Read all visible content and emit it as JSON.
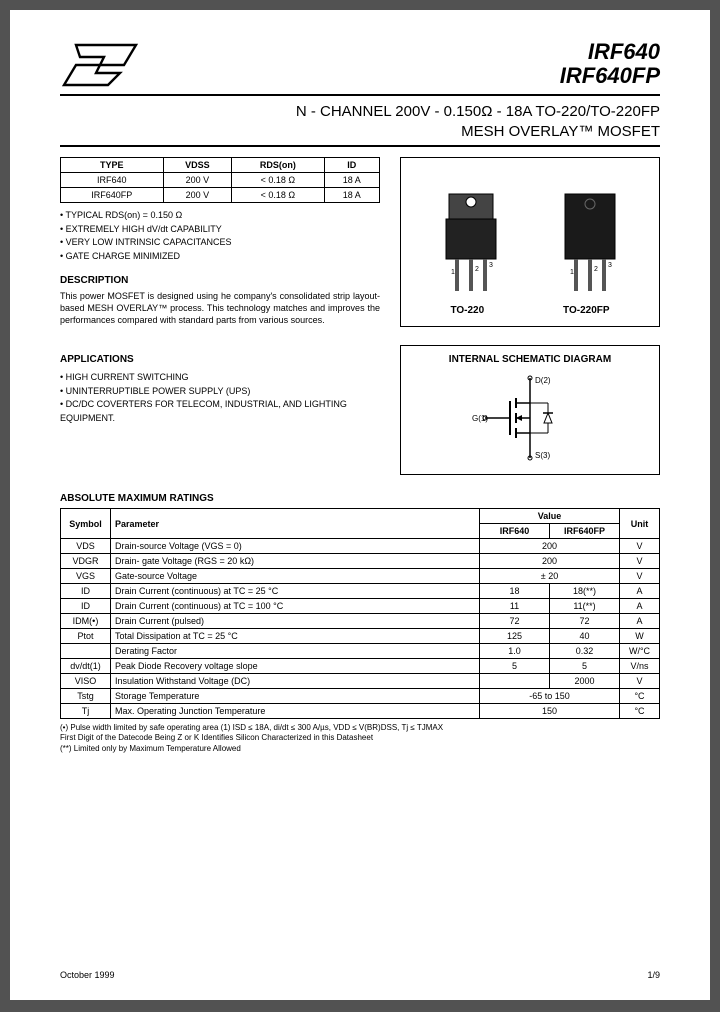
{
  "header": {
    "part1": "IRF640",
    "part2": "IRF640FP",
    "title1": "N - CHANNEL 200V - 0.150Ω - 18A   TO-220/TO-220FP",
    "title2": "MESH OVERLAY™  MOSFET"
  },
  "spec_table": {
    "headers": [
      "TYPE",
      "VDSS",
      "RDS(on)",
      "ID"
    ],
    "rows": [
      [
        "IRF640",
        "200 V",
        "< 0.18 Ω",
        "18 A"
      ],
      [
        "IRF640FP",
        "200 V",
        "< 0.18 Ω",
        "18 A"
      ]
    ]
  },
  "features": [
    "TYPICAL RDS(on) = 0.150 Ω",
    "EXTREMELY HIGH dV/dt CAPABILITY",
    "VERY LOW INTRINSIC CAPACITANCES",
    "GATE CHARGE MINIMIZED"
  ],
  "desc_title": "DESCRIPTION",
  "desc_text": "This power MOSFET is designed using he company's consolidated strip layout-based MESH OVERLAY™ process. This technology matches and improves the performances compared with standard parts from various sources.",
  "apps_title": "APPLICATIONS",
  "apps": [
    "HIGH CURRENT SWITCHING",
    "UNINTERRUPTIBLE POWER SUPPLY (UPS)",
    "DC/DC COVERTERS FOR TELECOM, INDUSTRIAL, AND LIGHTING EQUIPMENT."
  ],
  "pkg_labels": {
    "a": "TO-220",
    "b": "TO-220FP"
  },
  "schem_title": "INTERNAL  SCHEMATIC  DIAGRAM",
  "ratings_title": "ABSOLUTE  MAXIMUM  RATINGS",
  "ratings": {
    "headers": [
      "Symbol",
      "Parameter",
      "IRF640",
      "IRF640FP",
      "Unit"
    ],
    "value_hdr": "Value",
    "rows": [
      {
        "sym": "VDS",
        "param": "Drain-source Voltage (VGS = 0)",
        "v1": "200",
        "v2": "",
        "unit": "V",
        "span": true
      },
      {
        "sym": "VDGR",
        "param": "Drain- gate Voltage (RGS = 20 kΩ)",
        "v1": "200",
        "v2": "",
        "unit": "V",
        "span": true
      },
      {
        "sym": "VGS",
        "param": "Gate-source Voltage",
        "v1": "± 20",
        "v2": "",
        "unit": "V",
        "span": true
      },
      {
        "sym": "ID",
        "param": "Drain Current (continuous) at TC = 25 °C",
        "v1": "18",
        "v2": "18(**)",
        "unit": "A",
        "span": false
      },
      {
        "sym": "ID",
        "param": "Drain Current (continuous) at TC = 100 °C",
        "v1": "11",
        "v2": "11(**)",
        "unit": "A",
        "span": false
      },
      {
        "sym": "IDM(•)",
        "param": "Drain Current (pulsed)",
        "v1": "72",
        "v2": "72",
        "unit": "A",
        "span": false
      },
      {
        "sym": "Ptot",
        "param": "Total Dissipation at TC = 25 °C",
        "v1": "125",
        "v2": "40",
        "unit": "W",
        "span": false
      },
      {
        "sym": "",
        "param": "Derating Factor",
        "v1": "1.0",
        "v2": "0.32",
        "unit": "W/°C",
        "span": false
      },
      {
        "sym": "dv/dt(1)",
        "param": "Peak Diode Recovery voltage slope",
        "v1": "5",
        "v2": "5",
        "unit": "V/ns",
        "span": false
      },
      {
        "sym": "VISO",
        "param": "Insulation Withstand Voltage (DC)",
        "v1": "",
        "v2": "2000",
        "unit": "V",
        "span": false
      },
      {
        "sym": "Tstg",
        "param": "Storage Temperature",
        "v1": "-65 to 150",
        "v2": "",
        "unit": "°C",
        "span": true
      },
      {
        "sym": "Tj",
        "param": "Max. Operating Junction Temperature",
        "v1": "150",
        "v2": "",
        "unit": "°C",
        "span": true
      }
    ]
  },
  "notes": [
    "(•)  Pulse width limited by safe operating area            (1) ISD ≤ 18A, di/dt ≤ 300 A/µs, VDD ≤ V(BR)DSS, Tj ≤ TJMAX",
    "     First Digit of the Datecode Being Z or K Identifies Silicon Characterized in this Datasheet",
    "(**) Limited only by Maximum Temperature Allowed"
  ],
  "footer": {
    "date": "October 1999",
    "page": "1/9"
  }
}
